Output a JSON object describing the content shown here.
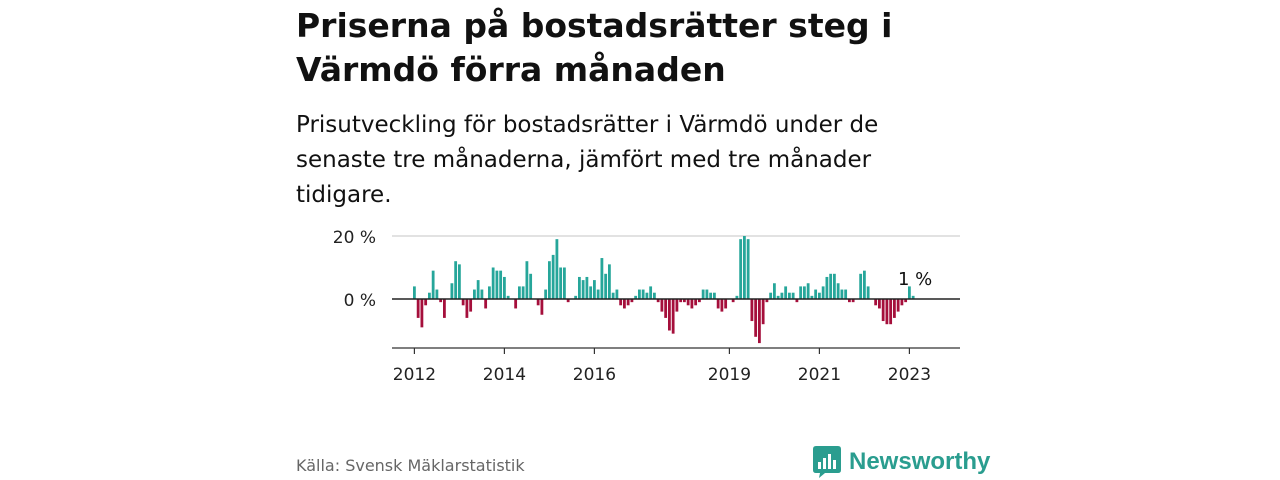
{
  "header": {
    "title": "Priserna på bostadsrätter steg i Värmdö förra månaden",
    "subtitle": "Prisutveckling för bostadsrätter i Värmdö under de senaste tre månaderna, jämfört med tre månader tidigare."
  },
  "footer": {
    "source": "Källa: Svensk Mäklarstatistik",
    "brand": "Newsworthy"
  },
  "colors": {
    "positive": "#26a69a",
    "negative": "#a50f3b",
    "grid": "#d9d9d9",
    "axis": "#333333",
    "brand": "#2a9d8f"
  },
  "icons": {
    "brand_logo": "bar-chart-speech-bubble-icon"
  },
  "chart_data": {
    "type": "bar",
    "title": "Priserna på bostadsrätter steg i Värmdö förra månaden",
    "ylabel": "",
    "xlabel": "",
    "ylim": [
      -15,
      20
    ],
    "yticks": [
      {
        "value": 0,
        "label": "0 %"
      },
      {
        "value": 20,
        "label": "20 %"
      }
    ],
    "xticks": [
      {
        "year": 2012,
        "label": "2012"
      },
      {
        "year": 2014,
        "label": "2014"
      },
      {
        "year": 2016,
        "label": "2016"
      },
      {
        "year": 2019,
        "label": "2019"
      },
      {
        "year": 2021,
        "label": "2021"
      },
      {
        "year": 2023,
        "label": "2023"
      }
    ],
    "start": "2012-01",
    "frequency": "monthly",
    "annotation": {
      "text": "1 %",
      "value": 1
    },
    "values": [
      4,
      -6,
      -9,
      -2,
      2,
      9,
      3,
      -1,
      -6,
      0,
      5,
      12,
      11,
      -2,
      -6,
      -4,
      3,
      6,
      3,
      -3,
      4,
      10,
      9,
      9,
      7,
      1,
      0,
      -3,
      4,
      4,
      12,
      8,
      0,
      -2,
      -5,
      3,
      12,
      14,
      19,
      10,
      10,
      -1,
      0,
      1,
      7,
      6,
      7,
      4,
      6,
      3,
      13,
      8,
      11,
      2,
      3,
      -2,
      -3,
      -2,
      -1,
      1,
      3,
      3,
      2,
      4,
      2,
      -1,
      -4,
      -6,
      -10,
      -11,
      -4,
      -1,
      -1,
      -2,
      -3,
      -2,
      -1,
      3,
      3,
      2,
      2,
      -3,
      -4,
      -3,
      0,
      -1,
      1,
      19,
      20,
      19,
      -7,
      -12,
      -14,
      -8,
      -1,
      2,
      5,
      1,
      2,
      4,
      2,
      2,
      -1,
      4,
      4,
      5,
      1,
      3,
      2,
      4,
      7,
      8,
      8,
      5,
      3,
      3,
      -1,
      -1,
      0,
      8,
      9,
      4,
      0,
      -2,
      -3,
      -7,
      -8,
      -8,
      -6,
      -4,
      -2,
      -1,
      4,
      1
    ]
  }
}
